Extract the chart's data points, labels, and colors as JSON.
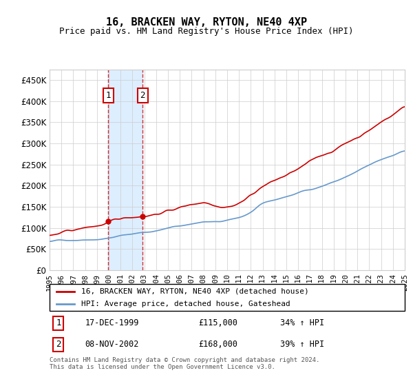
{
  "title": "16, BRACKEN WAY, RYTON, NE40 4XP",
  "subtitle": "Price paid vs. HM Land Registry's House Price Index (HPI)",
  "footer": "Contains HM Land Registry data © Crown copyright and database right 2024.\nThis data is licensed under the Open Government Licence v3.0.",
  "legend_line1": "16, BRACKEN WAY, RYTON, NE40 4XP (detached house)",
  "legend_line2": "HPI: Average price, detached house, Gateshead",
  "sale1_label": "1",
  "sale1_date": "17-DEC-1999",
  "sale1_price": "£115,000",
  "sale1_hpi": "34% ↑ HPI",
  "sale2_label": "2",
  "sale2_date": "08-NOV-2002",
  "sale2_price": "£168,000",
  "sale2_hpi": "39% ↑ HPI",
  "year_start": 1995,
  "year_end": 2025,
  "ylim": [
    0,
    475000
  ],
  "yticks": [
    0,
    50000,
    100000,
    150000,
    200000,
    250000,
    300000,
    350000,
    400000,
    450000
  ],
  "sale1_year": 1999.96,
  "sale2_year": 2002.85,
  "red_color": "#cc0000",
  "blue_color": "#6699cc",
  "shade_color": "#ddeeff",
  "grid_color": "#cccccc",
  "bg_color": "#ffffff"
}
